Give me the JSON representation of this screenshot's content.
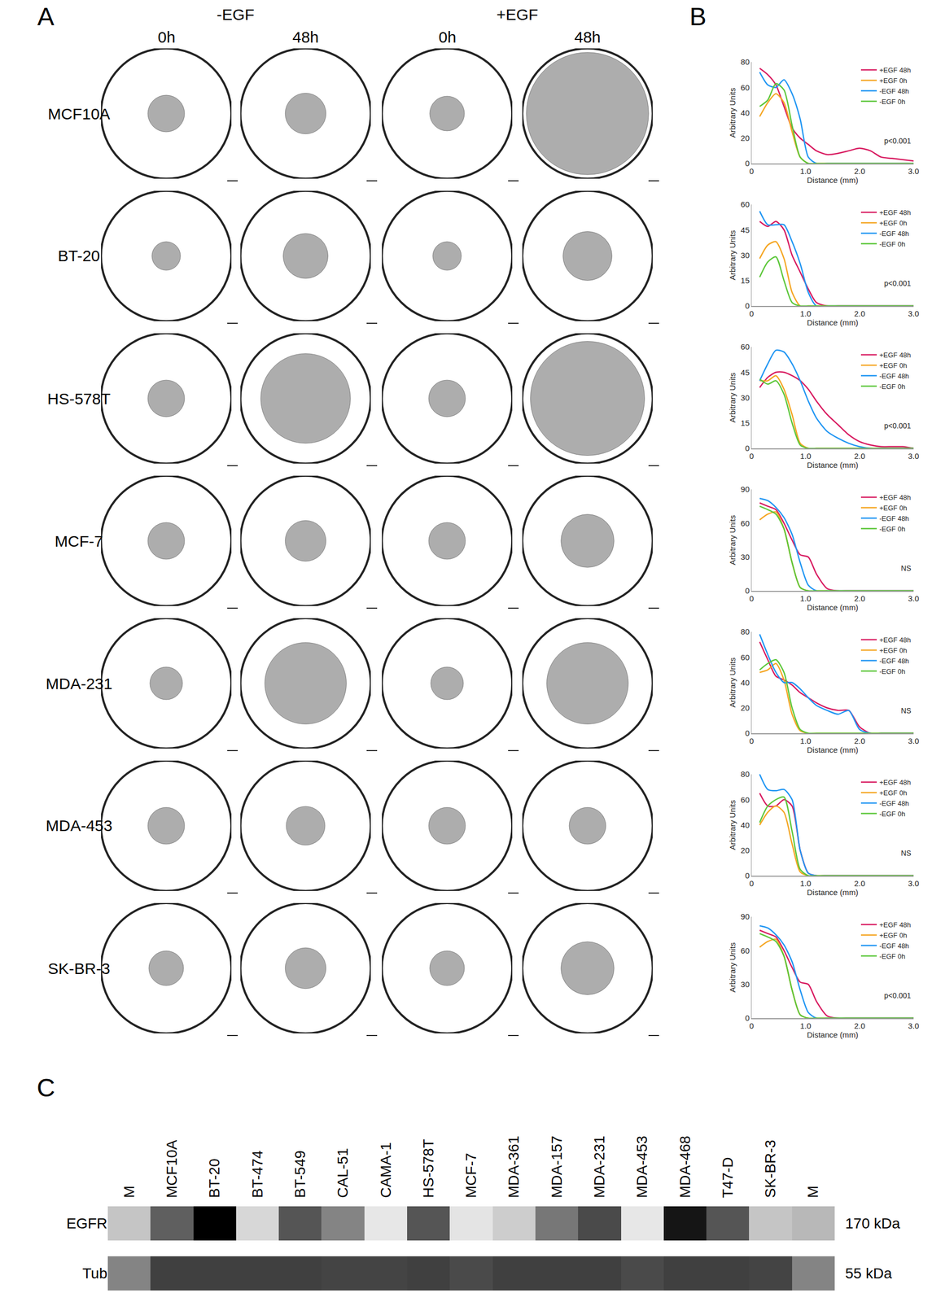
{
  "panel_labels": {
    "a": "A",
    "b": "B",
    "c": "C"
  },
  "panel_a": {
    "well_radius_mm": 3.2,
    "columns": [
      {
        "egf": "-EGF",
        "time": "0h"
      },
      {
        "egf": "-EGF",
        "time": "48h"
      },
      {
        "egf": "+EGF",
        "time": "0h"
      },
      {
        "egf": "+EGF",
        "time": "48h"
      }
    ],
    "rows": [
      {
        "cell_line": "MCF10A",
        "colony_radius_mm": [
          0.9,
          1.0,
          0.85,
          3.0
        ]
      },
      {
        "cell_line": "BT-20",
        "colony_radius_mm": [
          0.7,
          1.1,
          0.7,
          1.2
        ]
      },
      {
        "cell_line": "HS-578T",
        "colony_radius_mm": [
          0.9,
          2.2,
          0.9,
          2.8
        ]
      },
      {
        "cell_line": "MCF-7",
        "colony_radius_mm": [
          0.9,
          1.0,
          0.9,
          1.3
        ]
      },
      {
        "cell_line": "MDA-231",
        "colony_radius_mm": [
          0.8,
          2.0,
          0.8,
          2.0
        ]
      },
      {
        "cell_line": "MDA-453",
        "colony_radius_mm": [
          0.9,
          0.95,
          0.9,
          0.9
        ]
      },
      {
        "cell_line": "SK-BR-3",
        "colony_radius_mm": [
          0.85,
          1.0,
          0.85,
          1.3
        ]
      }
    ]
  },
  "chart_data": [
    {
      "type": "line",
      "x_label": "Distance (mm)",
      "y_label": "Arbitrary Units",
      "annotation": "p<0.001",
      "legend": "upper right",
      "grid": false,
      "xlim": [
        0,
        3
      ],
      "xticks": [
        0,
        {
          "value": 1,
          "label": "1.0"
        },
        {
          "value": 2,
          "label": "2.0"
        },
        {
          "value": 3,
          "label": "3.0"
        }
      ],
      "ylim": [
        0,
        80
      ],
      "yticks": [
        0,
        20,
        40,
        60,
        80
      ],
      "x": [
        0.15,
        0.3,
        0.45,
        0.6,
        0.75,
        0.9,
        1.05,
        1.2,
        1.4,
        1.6,
        1.8,
        2.0,
        2.2,
        2.4,
        2.6,
        2.8,
        3.0
      ],
      "series": [
        {
          "name": "+EGF 48h",
          "color": "#d81b60",
          "values": [
            75,
            70,
            62,
            45,
            28,
            20,
            15,
            10,
            7,
            8,
            10,
            12,
            10,
            5,
            4,
            3,
            2
          ]
        },
        {
          "name": "+EGF 0h",
          "color": "#f5a623",
          "values": [
            37,
            48,
            55,
            48,
            25,
            5,
            0,
            0,
            0,
            0,
            0,
            0,
            0,
            0,
            0,
            0,
            0
          ]
        },
        {
          "name": "-EGF 48h",
          "color": "#2196f3",
          "values": [
            72,
            62,
            60,
            66,
            55,
            35,
            5,
            0,
            0,
            0,
            0,
            0,
            0,
            0,
            0,
            0,
            0
          ]
        },
        {
          "name": "-EGF 0h",
          "color": "#5cc73a",
          "values": [
            45,
            50,
            63,
            58,
            30,
            5,
            0,
            0,
            0,
            0,
            0,
            0,
            0,
            0,
            0,
            0,
            0
          ]
        }
      ]
    },
    {
      "type": "line",
      "x_label": "Distance (mm)",
      "y_label": "Arbitrary Units",
      "annotation": "p<0.001",
      "legend": "upper right",
      "grid": false,
      "xlim": [
        0,
        3
      ],
      "xticks": [
        0,
        {
          "value": 1,
          "label": "1.0"
        },
        {
          "value": 2,
          "label": "2.0"
        },
        {
          "value": 3,
          "label": "3.0"
        }
      ],
      "ylim": [
        0,
        60
      ],
      "yticks": [
        0,
        15,
        30,
        45,
        60
      ],
      "x": [
        0.15,
        0.3,
        0.45,
        0.6,
        0.75,
        0.9,
        1.05,
        1.2,
        1.4,
        1.6,
        1.8,
        2.0,
        2.2,
        2.4,
        2.6,
        2.8,
        3.0
      ],
      "series": [
        {
          "name": "+EGF 48h",
          "color": "#d81b60",
          "values": [
            50,
            47,
            50,
            45,
            30,
            20,
            10,
            2,
            0,
            0,
            0,
            0,
            0,
            0,
            0,
            0,
            0
          ]
        },
        {
          "name": "+EGF 0h",
          "color": "#f5a623",
          "values": [
            28,
            36,
            38,
            28,
            8,
            0,
            0,
            0,
            0,
            0,
            0,
            0,
            0,
            0,
            0,
            0,
            0
          ]
        },
        {
          "name": "-EGF 48h",
          "color": "#2196f3",
          "values": [
            56,
            48,
            48,
            48,
            38,
            25,
            8,
            0,
            0,
            0,
            0,
            0,
            0,
            0,
            0,
            0,
            0
          ]
        },
        {
          "name": "-EGF 0h",
          "color": "#5cc73a",
          "values": [
            17,
            26,
            29,
            15,
            2,
            0,
            0,
            0,
            0,
            0,
            0,
            0,
            0,
            0,
            0,
            0,
            0
          ]
        }
      ]
    },
    {
      "type": "line",
      "x_label": "Distance (mm)",
      "y_label": "Arbitrary Units",
      "annotation": "p<0.001",
      "legend": "upper right",
      "grid": false,
      "xlim": [
        0,
        3
      ],
      "xticks": [
        0,
        {
          "value": 1,
          "label": "1.0"
        },
        {
          "value": 2,
          "label": "2.0"
        },
        {
          "value": 3,
          "label": "3.0"
        }
      ],
      "ylim": [
        0,
        60
      ],
      "yticks": [
        0,
        15,
        30,
        45,
        60
      ],
      "x": [
        0.15,
        0.3,
        0.45,
        0.6,
        0.75,
        0.9,
        1.05,
        1.2,
        1.4,
        1.6,
        1.8,
        2.0,
        2.2,
        2.4,
        2.6,
        2.8,
        3.0
      ],
      "series": [
        {
          "name": "+EGF 48h",
          "color": "#d81b60",
          "values": [
            36,
            42,
            45,
            45,
            43,
            40,
            35,
            28,
            20,
            14,
            8,
            4,
            2,
            1,
            1,
            1,
            0
          ]
        },
        {
          "name": "+EGF 0h",
          "color": "#f5a623",
          "values": [
            40,
            40,
            43,
            35,
            20,
            3,
            0,
            0,
            0,
            0,
            0,
            0,
            0,
            0,
            0,
            0,
            0
          ]
        },
        {
          "name": "-EGF 48h",
          "color": "#2196f3",
          "values": [
            40,
            50,
            58,
            57,
            50,
            40,
            28,
            18,
            10,
            6,
            3,
            1,
            0,
            0,
            0,
            0,
            0
          ]
        },
        {
          "name": "-EGF 0h",
          "color": "#5cc73a",
          "values": [
            41,
            38,
            40,
            32,
            15,
            2,
            0,
            0,
            0,
            0,
            0,
            0,
            0,
            0,
            0,
            0,
            0
          ]
        }
      ]
    },
    {
      "type": "line",
      "x_label": "Distance (mm)",
      "y_label": "Arbitrary Units",
      "annotation": "NS",
      "legend": "upper right",
      "grid": false,
      "xlim": [
        0,
        3
      ],
      "xticks": [
        0,
        {
          "value": 1,
          "label": "1.0"
        },
        {
          "value": 2,
          "label": "2.0"
        },
        {
          "value": 3,
          "label": "3.0"
        }
      ],
      "ylim": [
        0,
        90
      ],
      "yticks": [
        0,
        30,
        60,
        90
      ],
      "x": [
        0.15,
        0.3,
        0.45,
        0.6,
        0.75,
        0.9,
        1.05,
        1.2,
        1.4,
        1.6,
        1.8,
        2.0,
        2.2,
        2.4,
        2.6,
        2.8,
        3.0
      ],
      "series": [
        {
          "name": "+EGF 48h",
          "color": "#d81b60",
          "values": [
            78,
            75,
            72,
            60,
            45,
            32,
            30,
            15,
            2,
            0,
            0,
            0,
            0,
            0,
            0,
            0,
            0
          ]
        },
        {
          "name": "+EGF 0h",
          "color": "#f5a623",
          "values": [
            63,
            68,
            70,
            55,
            25,
            3,
            0,
            0,
            0,
            0,
            0,
            0,
            0,
            0,
            0,
            0,
            0
          ]
        },
        {
          "name": "-EGF 48h",
          "color": "#2196f3",
          "values": [
            82,
            80,
            74,
            65,
            50,
            25,
            5,
            0,
            0,
            0,
            0,
            0,
            0,
            0,
            0,
            0,
            0
          ]
        },
        {
          "name": "-EGF 0h",
          "color": "#5cc73a",
          "values": [
            75,
            72,
            68,
            55,
            25,
            3,
            0,
            0,
            0,
            0,
            0,
            0,
            0,
            0,
            0,
            0,
            0
          ]
        }
      ]
    },
    {
      "type": "line",
      "x_label": "Distance (mm)",
      "y_label": "Arbitrary Units",
      "annotation": "NS",
      "legend": "upper right",
      "grid": false,
      "xlim": [
        0,
        3
      ],
      "xticks": [
        0,
        {
          "value": 1,
          "label": "1.0"
        },
        {
          "value": 2,
          "label": "2.0"
        },
        {
          "value": 3,
          "label": "3.0"
        }
      ],
      "ylim": [
        0,
        80
      ],
      "yticks": [
        0,
        20,
        40,
        60,
        80
      ],
      "x": [
        0.15,
        0.3,
        0.45,
        0.6,
        0.75,
        0.9,
        1.05,
        1.2,
        1.4,
        1.6,
        1.8,
        2.0,
        2.2,
        2.4,
        2.6,
        2.8,
        3.0
      ],
      "series": [
        {
          "name": "+EGF 48h",
          "color": "#d81b60",
          "values": [
            72,
            58,
            45,
            42,
            38,
            32,
            28,
            24,
            20,
            18,
            18,
            5,
            0,
            0,
            0,
            0,
            0
          ]
        },
        {
          "name": "+EGF 0h",
          "color": "#f5a623",
          "values": [
            48,
            50,
            55,
            42,
            15,
            2,
            0,
            0,
            0,
            0,
            0,
            0,
            0,
            0,
            0,
            0,
            0
          ]
        },
        {
          "name": "-EGF 48h",
          "color": "#2196f3",
          "values": [
            78,
            62,
            48,
            40,
            40,
            35,
            28,
            22,
            18,
            15,
            18,
            3,
            0,
            0,
            0,
            0,
            0
          ]
        },
        {
          "name": "-EGF 0h",
          "color": "#5cc73a",
          "values": [
            50,
            55,
            58,
            48,
            20,
            3,
            0,
            0,
            0,
            0,
            0,
            0,
            0,
            0,
            0,
            0,
            0
          ]
        }
      ]
    },
    {
      "type": "line",
      "x_label": "Distance (mm)",
      "y_label": "Arbitrary Units",
      "annotation": "NS",
      "legend": "upper right",
      "grid": false,
      "xlim": [
        0,
        3
      ],
      "xticks": [
        0,
        {
          "value": 1,
          "label": "1.0"
        },
        {
          "value": 2,
          "label": "2.0"
        },
        {
          "value": 3,
          "label": "3.0"
        }
      ],
      "ylim": [
        0,
        80
      ],
      "yticks": [
        0,
        20,
        40,
        60,
        80
      ],
      "x": [
        0.15,
        0.3,
        0.45,
        0.6,
        0.75,
        0.9,
        1.05,
        1.2,
        1.4,
        1.6,
        1.8,
        2.0,
        2.2,
        2.4,
        2.6,
        2.8,
        3.0
      ],
      "series": [
        {
          "name": "+EGF 48h",
          "color": "#d81b60",
          "values": [
            65,
            55,
            55,
            60,
            55,
            20,
            2,
            0,
            0,
            0,
            0,
            0,
            0,
            0,
            0,
            0,
            0
          ]
        },
        {
          "name": "+EGF 0h",
          "color": "#f5a623",
          "values": [
            40,
            50,
            55,
            50,
            25,
            3,
            0,
            0,
            0,
            0,
            0,
            0,
            0,
            0,
            0,
            0,
            0
          ]
        },
        {
          "name": "-EGF 48h",
          "color": "#2196f3",
          "values": [
            80,
            68,
            67,
            68,
            60,
            20,
            2,
            0,
            0,
            0,
            0,
            0,
            0,
            0,
            0,
            0,
            0
          ]
        },
        {
          "name": "-EGF 0h",
          "color": "#5cc73a",
          "values": [
            42,
            55,
            60,
            62,
            35,
            5,
            0,
            0,
            0,
            0,
            0,
            0,
            0,
            0,
            0,
            0,
            0
          ]
        }
      ]
    },
    {
      "type": "line",
      "x_label": "Distance (mm)",
      "y_label": "Arbitrary Units",
      "annotation": "p<0.001",
      "legend": "upper right",
      "grid": false,
      "xlim": [
        0,
        3
      ],
      "xticks": [
        0,
        {
          "value": 1,
          "label": "1.0"
        },
        {
          "value": 2,
          "label": "2.0"
        },
        {
          "value": 3,
          "label": "3.0"
        }
      ],
      "ylim": [
        0,
        90
      ],
      "yticks": [
        0,
        30,
        60,
        90
      ],
      "x": [
        0.15,
        0.3,
        0.45,
        0.6,
        0.75,
        0.9,
        1.05,
        1.2,
        1.4,
        1.6,
        1.8,
        2.0,
        2.2,
        2.4,
        2.6,
        2.8,
        3.0
      ],
      "series": [
        {
          "name": "+EGF 48h",
          "color": "#d81b60",
          "values": [
            78,
            75,
            72,
            60,
            45,
            32,
            30,
            15,
            2,
            0,
            0,
            0,
            0,
            0,
            0,
            0,
            0
          ]
        },
        {
          "name": "+EGF 0h",
          "color": "#f5a623",
          "values": [
            63,
            68,
            70,
            55,
            25,
            3,
            0,
            0,
            0,
            0,
            0,
            0,
            0,
            0,
            0,
            0,
            0
          ]
        },
        {
          "name": "-EGF 48h",
          "color": "#2196f3",
          "values": [
            82,
            80,
            74,
            65,
            50,
            25,
            5,
            0,
            0,
            0,
            0,
            0,
            0,
            0,
            0,
            0,
            0
          ]
        },
        {
          "name": "-EGF 0h",
          "color": "#5cc73a",
          "values": [
            75,
            72,
            68,
            55,
            25,
            3,
            0,
            0,
            0,
            0,
            0,
            0,
            0,
            0,
            0,
            0,
            0
          ]
        }
      ]
    }
  ],
  "panel_c": {
    "type": "heatmap",
    "lanes": [
      "M",
      "MCF10A",
      "BT-20",
      "BT-474",
      "BT-549",
      "CAL-51",
      "CAMA-1",
      "HS-578T",
      "MCF-7",
      "MDA-361",
      "MDA-157",
      "MDA-231",
      "MDA-453",
      "MDA-468",
      "T47-D",
      "SK-BR-3",
      "M"
    ],
    "zlim": [
      0,
      100
    ],
    "rows": [
      {
        "label": "EGFR",
        "mw": "170 kDa",
        "intensity": [
          15,
          55,
          100,
          8,
          60,
          40,
          2,
          60,
          3,
          12,
          45,
          65,
          2,
          90,
          60,
          15,
          20
        ]
      },
      {
        "label": "Tub",
        "mw": "55 kDa",
        "intensity": [
          40,
          70,
          70,
          70,
          70,
          68,
          68,
          70,
          65,
          70,
          70,
          70,
          65,
          70,
          70,
          68,
          40
        ]
      }
    ]
  }
}
